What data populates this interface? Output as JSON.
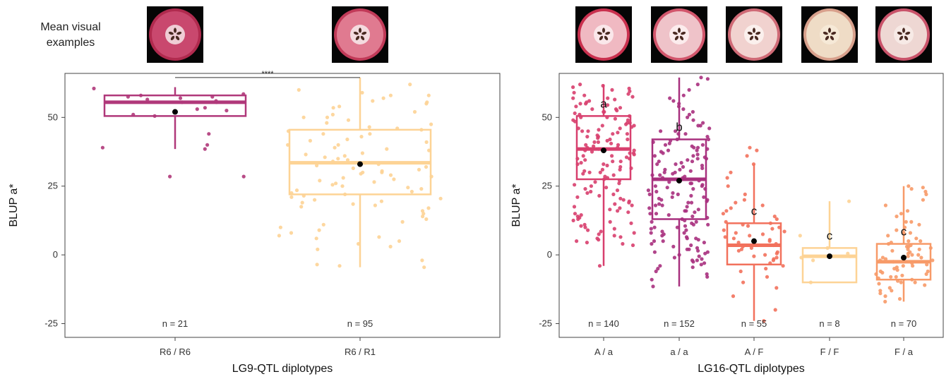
{
  "caption": {
    "line1": "Mean visual",
    "line2": "examples"
  },
  "chart_data": [
    {
      "type": "box",
      "xlabel": "LG9-QTL diplotypes",
      "ylabel": "BLUP a*",
      "ylim": [
        -30,
        66
      ],
      "yticks": [
        -25,
        0,
        25,
        50
      ],
      "grid": false,
      "significance": {
        "label": "****",
        "between": [
          "R6 / R6",
          "R6 / R1"
        ]
      },
      "categories": [
        "R6 / R6",
        "R6 / R1"
      ],
      "groups": [
        {
          "name": "R6 / R6",
          "color": "#b0387a",
          "n_label": "n = 21",
          "q1": 50.5,
          "median": 55.5,
          "q3": 58,
          "whisker_low": 38.5,
          "whisker_high": 61,
          "mean": 52,
          "points": [
            60.5,
            58.5,
            58,
            57.5,
            57.5,
            57,
            56.5,
            56,
            55.5,
            55.5,
            53.5,
            53,
            52.5,
            51,
            50.5,
            44,
            40,
            39,
            38.5,
            28.5,
            28.5
          ]
        },
        {
          "name": "R6 / R1",
          "color": "#fdd395",
          "n_label": "n = 95",
          "q1": 22,
          "median": 33.5,
          "q3": 45.5,
          "whisker_low": -4.5,
          "whisker_high": 64.5,
          "mean": 33,
          "points": [
            62,
            60,
            59,
            58,
            58,
            57,
            56,
            55.5,
            55,
            54,
            53.5,
            52,
            51,
            50,
            50,
            49,
            48,
            47.5,
            46.5,
            46,
            45.5,
            45,
            44,
            44,
            43,
            42,
            41.5,
            41,
            40,
            40,
            39,
            38.5,
            38,
            37,
            36.5,
            36,
            35.5,
            35,
            34.5,
            34,
            33.5,
            33,
            32.5,
            32,
            31.5,
            31,
            30.5,
            30,
            30,
            29.5,
            29,
            28.5,
            28,
            27.5,
            27,
            26.5,
            26,
            25.5,
            25,
            24.5,
            24,
            23.5,
            23,
            22.5,
            22,
            21.5,
            21,
            20.5,
            20,
            19.5,
            19,
            18.5,
            18,
            17.5,
            17,
            16,
            15,
            14,
            13,
            12,
            11,
            10,
            9,
            8,
            7,
            6.5,
            6,
            5,
            4,
            3,
            2,
            -2,
            -3.5,
            -4,
            -4.5
          ]
        }
      ]
    },
    {
      "type": "box",
      "xlabel": "LG16-QTL diplotypes",
      "ylabel": "BLUP a*",
      "ylim": [
        -30,
        66
      ],
      "yticks": [
        -25,
        0,
        25,
        50
      ],
      "grid": false,
      "categories": [
        "A / a",
        "a / a",
        "A / F",
        "F / F",
        "F / a"
      ],
      "groups": [
        {
          "name": "A / a",
          "color": "#d83f6e",
          "n_label": "n = 140",
          "letter": "a",
          "q1": 27.5,
          "median": 38.5,
          "q3": 50.5,
          "whisker_low": -4,
          "whisker_high": 62,
          "mean": 38,
          "points": [
            62,
            61.5,
            61,
            60.5,
            60,
            59.5,
            59,
            58.5,
            58,
            57.5,
            57,
            56.5,
            56,
            55.5,
            55,
            54.5,
            54,
            53.5,
            53,
            52.5,
            52,
            51.5,
            51,
            50.5,
            50,
            49.5,
            49,
            48.5,
            48,
            47.5,
            47,
            46.5,
            46,
            45.5,
            45,
            44.5,
            44,
            43.5,
            43,
            42.5,
            42,
            41.5,
            41,
            40.5,
            40,
            39.5,
            39,
            38.5,
            38,
            37.5,
            37,
            36.5,
            36,
            35.5,
            35,
            34.5,
            34,
            33.5,
            33,
            32.5,
            32,
            31.5,
            31,
            30.5,
            30,
            29.5,
            29,
            28.5,
            28,
            27.5,
            27,
            26.5,
            26,
            25.5,
            25,
            24.5,
            24,
            23.5,
            23,
            22.5,
            22,
            21.5,
            21,
            20.5,
            20,
            19.5,
            19,
            18.5,
            18,
            17.5,
            17,
            16.5,
            16,
            15.5,
            15,
            14.5,
            14,
            13.5,
            13,
            12.5,
            12,
            11.5,
            11,
            10.5,
            10,
            9.5,
            9,
            8.5,
            8,
            7.5,
            7,
            6.5,
            6,
            5.5,
            5,
            4.5,
            4,
            3.5,
            45,
            48,
            52,
            55,
            40,
            42,
            36,
            33,
            30,
            44,
            50,
            47,
            38,
            35,
            41,
            53,
            57,
            49,
            43,
            46,
            39,
            37,
            34,
            31,
            -4
          ]
        },
        {
          "name": "a / a",
          "color": "#a8307e",
          "n_label": "n = 152",
          "letter": "b",
          "q1": 13,
          "median": 27.5,
          "q3": 42,
          "whisker_low": -11.5,
          "whisker_high": 64.5,
          "mean": 27,
          "points": [
            64.5,
            64,
            62,
            60,
            58,
            57,
            56,
            55,
            54,
            53,
            52,
            51,
            50,
            49,
            48,
            47,
            46,
            45,
            44,
            43,
            42,
            41.5,
            41,
            40.5,
            40,
            39.5,
            39,
            38.5,
            38,
            37.5,
            37,
            36.5,
            36,
            35.5,
            35,
            34.5,
            34,
            33.5,
            33,
            32.5,
            32,
            31.5,
            31,
            30.5,
            30,
            29.5,
            29,
            28.5,
            28,
            27.5,
            27,
            26.5,
            26,
            25.5,
            25,
            24.5,
            24,
            23.5,
            23,
            22.5,
            22,
            21.5,
            21,
            20.5,
            20,
            19.5,
            19,
            18.5,
            18,
            17.5,
            17,
            16.5,
            16,
            15.5,
            15,
            14.5,
            14,
            13.5,
            13,
            12.5,
            12,
            11.5,
            11,
            10.5,
            10,
            9.5,
            9,
            8.5,
            8,
            7.5,
            7,
            6.5,
            6,
            5.5,
            5,
            4.5,
            4,
            3.5,
            3,
            2.5,
            2,
            1.5,
            1,
            0.5,
            0,
            -0.5,
            -1,
            -1.5,
            -2,
            -2.5,
            -3,
            -3.5,
            -4,
            -4.5,
            -5,
            -6,
            -7,
            -8,
            -9,
            -11.5,
            30,
            35,
            25,
            20,
            40,
            45,
            15,
            10,
            28,
            33,
            38,
            22,
            18,
            12,
            8,
            5,
            2,
            42,
            47,
            36,
            31,
            26,
            21,
            16,
            11,
            6,
            1,
            -2,
            44,
            39,
            34,
            29,
            24,
            19
          ]
        },
        {
          "name": "A / F",
          "color": "#f2715c",
          "n_label": "n = 55",
          "letter": "c",
          "q1": -3.5,
          "median": 3.5,
          "q3": 11.5,
          "whisker_low": -24,
          "whisker_high": 33,
          "mean": 5,
          "points": [
            39,
            38,
            36,
            33,
            30,
            28,
            25,
            22,
            20,
            19,
            18,
            17,
            16,
            15,
            14,
            13,
            12,
            11.5,
            11,
            10.5,
            10,
            9.5,
            9,
            8.5,
            8,
            7.5,
            7,
            6.5,
            6,
            5.5,
            5,
            4.5,
            4,
            3.5,
            3,
            2.5,
            2,
            1.5,
            1,
            0.5,
            0,
            -0.5,
            -1,
            -1.5,
            -2,
            -3,
            -4,
            -5,
            -6,
            -8,
            -10,
            -12,
            -15,
            -20,
            -24
          ]
        },
        {
          "name": "F / F",
          "color": "#fdd395",
          "n_label": "n = 8",
          "letter": "c",
          "q1": -10,
          "median": -0.5,
          "q3": 2.5,
          "whisker_low": -10,
          "whisker_high": 19.5,
          "mean": -0.5,
          "points": [
            19.5,
            2.5,
            0.5,
            -0.5,
            -1,
            -2,
            -10,
            7
          ]
        },
        {
          "name": "F / a",
          "color": "#f79a68",
          "n_label": "n = 70",
          "letter": "c",
          "q1": -9,
          "median": -2.5,
          "q3": 4,
          "whisker_low": -17,
          "whisker_high": 25,
          "mean": -1,
          "points": [
            25,
            24.5,
            24,
            23,
            22,
            20,
            18,
            16,
            15,
            14,
            12,
            11,
            10,
            9,
            8,
            7,
            6,
            5,
            4.5,
            4,
            3.5,
            3,
            2.5,
            2,
            1.5,
            1,
            0.5,
            0,
            -0.5,
            -1,
            -1.5,
            -2,
            -2.5,
            -3,
            -3.5,
            -4,
            -4.5,
            -5,
            -5.5,
            -6,
            -6.5,
            -7,
            -7.5,
            -8,
            -8.5,
            -9,
            -9.5,
            -10,
            -10.5,
            -11,
            -12,
            -13,
            -14,
            -15,
            -16,
            -17,
            8,
            5,
            2,
            -1,
            -4,
            -7,
            -10,
            -13,
            12,
            0,
            -6,
            3,
            -2,
            -8
          ]
        }
      ]
    }
  ],
  "examples": [
    {
      "panel": 0,
      "group": "R6 / R6",
      "icon": "apple-slice-dark-red",
      "flesh": "#c9486e",
      "rim": "#b02a4e",
      "core": "#f3dce0"
    },
    {
      "panel": 0,
      "group": "R6 / R1",
      "icon": "apple-slice-pink",
      "flesh": "#e07a90",
      "rim": "#c13a58",
      "core": "#f6e6e8"
    },
    {
      "panel": 1,
      "group": "A / a",
      "icon": "apple-slice-red-ring",
      "flesh": "#f0b9c2",
      "rim": "#c9304e",
      "core": "#fbecee"
    },
    {
      "panel": 1,
      "group": "a / a",
      "icon": "apple-slice-light-pink",
      "flesh": "#efc3c9",
      "rim": "#d2566c",
      "core": "#fdf1f1"
    },
    {
      "panel": 1,
      "group": "A / F",
      "icon": "apple-slice-pale-pink",
      "flesh": "#f1d2cf",
      "rim": "#cf6a76",
      "core": "#fcf3ef"
    },
    {
      "panel": 1,
      "group": "F / F",
      "icon": "apple-slice-cream",
      "flesh": "#efdcc6",
      "rim": "#d8a08c",
      "core": "#f6ead8"
    },
    {
      "panel": 1,
      "group": "F / a",
      "icon": "apple-slice-cream-pink",
      "flesh": "#eed7d3",
      "rim": "#c9536a",
      "core": "#f7ece8"
    }
  ]
}
